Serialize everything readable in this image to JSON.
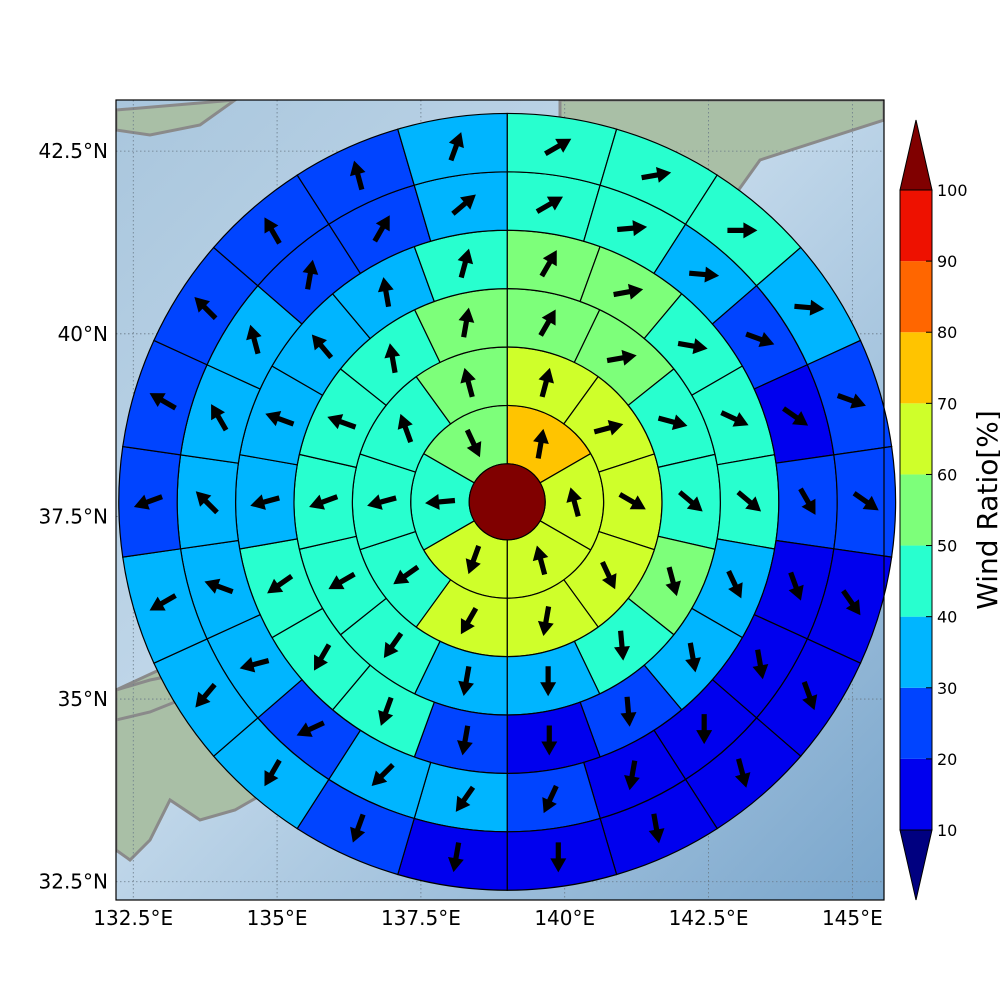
{
  "axes": {
    "lon_range": [
      132.2,
      145.55
    ],
    "lat_range": [
      32.25,
      43.2
    ],
    "x_ticks": [
      {
        "value": 132.5,
        "label": "132.5°E"
      },
      {
        "value": 135,
        "label": "135°E"
      },
      {
        "value": 137.5,
        "label": "137.5°E"
      },
      {
        "value": 140,
        "label": "140°E"
      },
      {
        "value": 142.5,
        "label": "142.5°E"
      },
      {
        "value": 145,
        "label": "145°E"
      }
    ],
    "y_ticks": [
      {
        "value": 42.5,
        "label": "42.5°N"
      },
      {
        "value": 40,
        "label": "40°N"
      },
      {
        "value": 37.5,
        "label": "37.5°N"
      },
      {
        "value": 35,
        "label": "35°N"
      },
      {
        "value": 32.5,
        "label": "32.5°N"
      }
    ],
    "grid": "dotted"
  },
  "colorbar": {
    "label": "Wind Ratio[%]",
    "ticks": [
      "10",
      "20",
      "30",
      "40",
      "50",
      "60",
      "70",
      "80",
      "90",
      "100"
    ],
    "bins": [
      {
        "from": 10,
        "to": 20,
        "color": "#0000ee"
      },
      {
        "from": 20,
        "to": 30,
        "color": "#0044ff"
      },
      {
        "from": 30,
        "to": 40,
        "color": "#00b5ff"
      },
      {
        "from": 40,
        "to": 50,
        "color": "#28ffcf"
      },
      {
        "from": 50,
        "to": 60,
        "color": "#7dff7a"
      },
      {
        "from": 60,
        "to": 70,
        "color": "#cfff2a"
      },
      {
        "from": 70,
        "to": 80,
        "color": "#ffc400"
      },
      {
        "from": 80,
        "to": 90,
        "color": "#ff6600"
      },
      {
        "from": 90,
        "to": 100,
        "color": "#ee1100"
      }
    ],
    "under_color": "#000080",
    "over_color": "#800000"
  },
  "chart_data": {
    "type": "polar-sector",
    "center": {
      "lon": 139.0,
      "lat": 37.7
    },
    "center_value": 100,
    "rings": [
      {
        "ring": 1,
        "values": [
          70,
          65,
          65,
          65,
          45,
          55
        ],
        "arrow_dir_deg": [
          10,
          345,
          345,
          200,
          265,
          155
        ]
      },
      {
        "ring": 2,
        "values": [
          65,
          65,
          60,
          60,
          65,
          60,
          40,
          40,
          45,
          55
        ],
        "arrow_dir_deg": [
          15,
          75,
          120,
          155,
          190,
          210,
          235,
          255,
          340,
          345
        ]
      },
      {
        "ring": 3,
        "values": [
          55,
          55,
          45,
          45,
          55,
          45,
          35,
          35,
          40,
          45,
          45,
          45,
          45,
          55
        ],
        "arrow_dir_deg": [
          30,
          80,
          105,
          130,
          165,
          175,
          180,
          190,
          215,
          240,
          250,
          290,
          350,
          10
        ]
      },
      {
        "ring": 4,
        "values": [
          55,
          55,
          45,
          45,
          45,
          35,
          35,
          25,
          15,
          25,
          45,
          45,
          40,
          35,
          35,
          35,
          35,
          45
        ],
        "arrow_dir_deg": [
          30,
          80,
          100,
          115,
          130,
          155,
          170,
          175,
          180,
          190,
          200,
          210,
          235,
          255,
          290,
          320,
          350,
          15
        ]
      },
      {
        "ring": 5,
        "values": [
          45,
          45,
          35,
          25,
          15,
          25,
          15,
          15,
          15,
          15,
          25,
          35,
          35,
          25,
          35,
          35,
          35,
          35,
          35,
          25,
          25,
          35
        ],
        "arrow_dir_deg": [
          60,
          85,
          95,
          110,
          125,
          150,
          160,
          170,
          180,
          190,
          205,
          215,
          225,
          245,
          255,
          290,
          315,
          330,
          345,
          10,
          30,
          50
        ]
      },
      {
        "ring": 6,
        "values": [
          45,
          45,
          45,
          35,
          25,
          25,
          15,
          15,
          15,
          15,
          15,
          15,
          25,
          35,
          35,
          35,
          25,
          25,
          25,
          25,
          25,
          35
        ],
        "arrow_dir_deg": [
          60,
          80,
          90,
          95,
          110,
          125,
          145,
          160,
          165,
          170,
          180,
          190,
          200,
          210,
          220,
          240,
          250,
          300,
          315,
          330,
          345,
          20
        ]
      }
    ]
  }
}
